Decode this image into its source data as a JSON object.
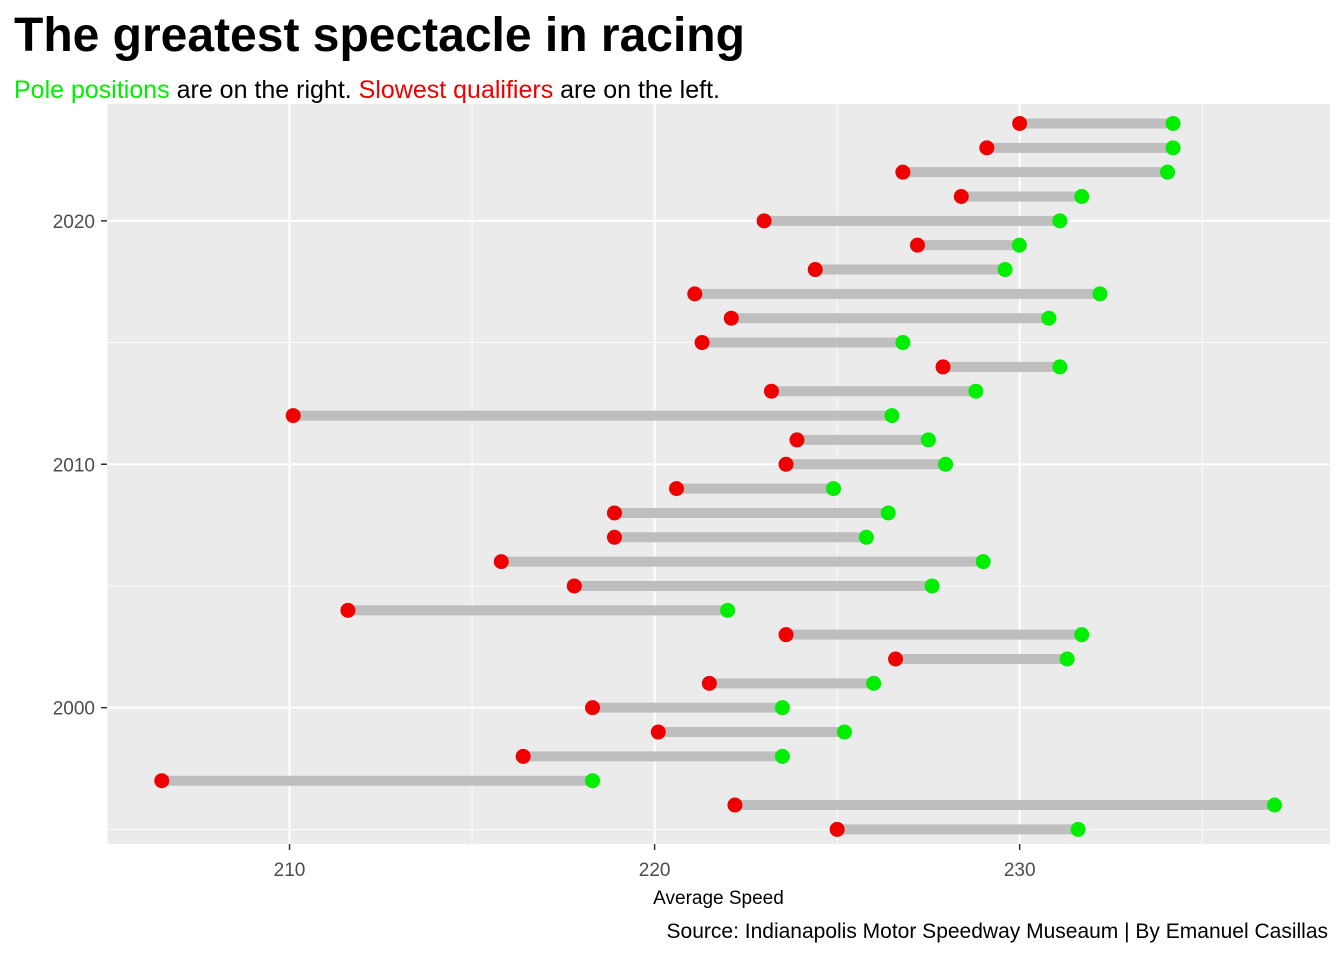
{
  "title": "The greatest spectacle in racing",
  "subtitle": {
    "pole_label": "Pole positions",
    "mid_text": " are on the right. ",
    "slow_label": "Slowest qualifiers",
    "end_text": " are on the left."
  },
  "caption": "Source: Indianapolis Motor Speedway Museaum | By Emanuel Casillas",
  "colors": {
    "pole": "#00ee00",
    "slowest": "#ee0000",
    "segment": "#bebebe",
    "panel": "#ebebeb",
    "grid": "#ffffff"
  },
  "chart_data": {
    "type": "dumbbell",
    "xlabel": "Average Speed",
    "ylabel": "",
    "xlim": [
      205,
      238.5
    ],
    "ylim": [
      1994.4,
      2024.8
    ],
    "x_ticks": [
      210,
      220,
      230
    ],
    "y_ticks": [
      2000,
      2010,
      2020
    ],
    "x_tick_labels": [
      "210",
      "220",
      "230"
    ],
    "y_tick_labels": [
      "2000",
      "2010",
      "2020"
    ],
    "grid": true,
    "series": [
      {
        "name": "Slowest qualifiers",
        "color": "#ee0000"
      },
      {
        "name": "Pole positions",
        "color": "#00ee00"
      }
    ],
    "rows": [
      {
        "year": 1995,
        "slowest": 225.0,
        "pole": 231.6
      },
      {
        "year": 1996,
        "slowest": 222.2,
        "pole": 236.98
      },
      {
        "year": 1997,
        "slowest": 206.5,
        "pole": 218.3
      },
      {
        "year": 1998,
        "slowest": 216.4,
        "pole": 223.5
      },
      {
        "year": 1999,
        "slowest": 220.1,
        "pole": 225.2
      },
      {
        "year": 2000,
        "slowest": 218.3,
        "pole": 223.5
      },
      {
        "year": 2001,
        "slowest": 221.5,
        "pole": 226.0
      },
      {
        "year": 2002,
        "slowest": 226.6,
        "pole": 231.3
      },
      {
        "year": 2003,
        "slowest": 223.6,
        "pole": 231.7
      },
      {
        "year": 2004,
        "slowest": 211.6,
        "pole": 222.0
      },
      {
        "year": 2005,
        "slowest": 217.8,
        "pole": 227.6
      },
      {
        "year": 2006,
        "slowest": 215.8,
        "pole": 229.0
      },
      {
        "year": 2007,
        "slowest": 218.9,
        "pole": 225.8
      },
      {
        "year": 2008,
        "slowest": 218.9,
        "pole": 226.4
      },
      {
        "year": 2009,
        "slowest": 220.6,
        "pole": 224.9
      },
      {
        "year": 2010,
        "slowest": 223.6,
        "pole": 227.97
      },
      {
        "year": 2011,
        "slowest": 223.9,
        "pole": 227.5
      },
      {
        "year": 2012,
        "slowest": 210.1,
        "pole": 226.5
      },
      {
        "year": 2013,
        "slowest": 223.2,
        "pole": 228.8
      },
      {
        "year": 2014,
        "slowest": 227.9,
        "pole": 231.1
      },
      {
        "year": 2015,
        "slowest": 221.3,
        "pole": 226.8
      },
      {
        "year": 2016,
        "slowest": 222.1,
        "pole": 230.8
      },
      {
        "year": 2017,
        "slowest": 221.1,
        "pole": 232.2
      },
      {
        "year": 2018,
        "slowest": 224.4,
        "pole": 229.6
      },
      {
        "year": 2019,
        "slowest": 227.2,
        "pole": 229.99
      },
      {
        "year": 2020,
        "slowest": 223.0,
        "pole": 231.1
      },
      {
        "year": 2021,
        "slowest": 228.4,
        "pole": 231.7
      },
      {
        "year": 2022,
        "slowest": 226.8,
        "pole": 234.05
      },
      {
        "year": 2023,
        "slowest": 229.1,
        "pole": 234.2
      },
      {
        "year": 2024,
        "slowest": 230.0,
        "pole": 234.2
      }
    ]
  }
}
